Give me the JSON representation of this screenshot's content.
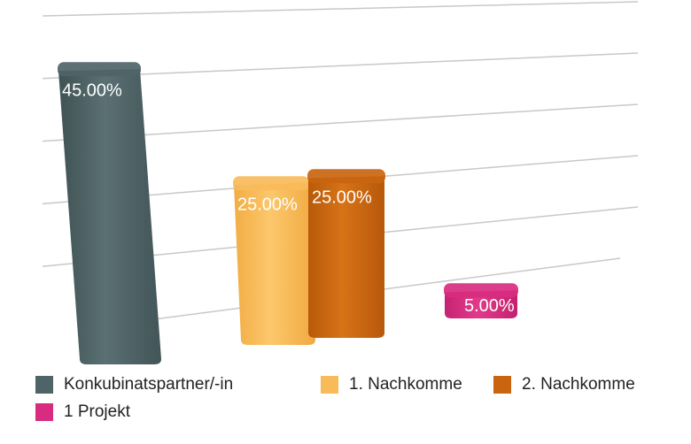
{
  "chart_data": {
    "type": "bar",
    "categories": [
      "Konkubinatspartner/-in",
      "1. Nachkomme",
      "2. Nachkomme",
      "1 Projekt"
    ],
    "values": [
      45,
      25,
      25,
      5
    ],
    "value_labels": [
      "45.00%",
      "25.00%",
      "25.00%",
      "5.00%"
    ],
    "colors": [
      "#4f6467",
      "#f8bb5a",
      "#c9650f",
      "#d92c80"
    ],
    "ylim": [
      0,
      50
    ],
    "grid": true,
    "legend_position": "bottom",
    "title": "",
    "xlabel": "",
    "ylabel": ""
  }
}
